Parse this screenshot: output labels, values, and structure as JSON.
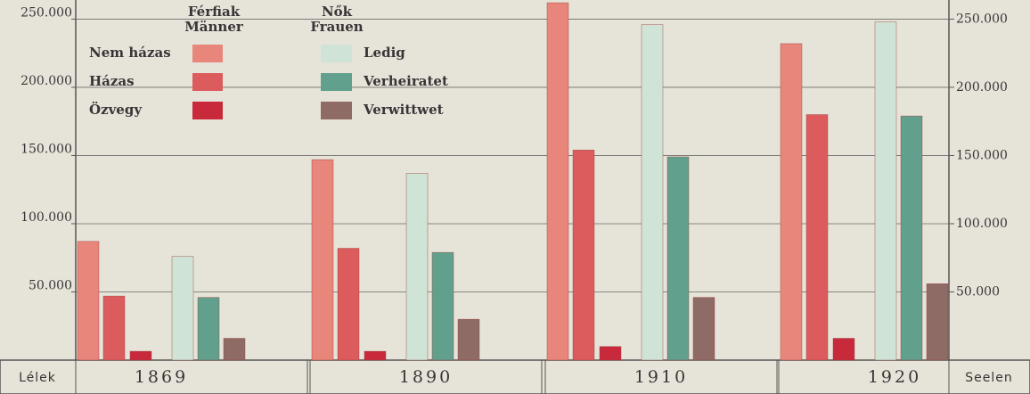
{
  "chart_data": {
    "type": "bar",
    "categories": [
      "1869",
      "1890",
      "1910",
      "1920"
    ],
    "legend_group_titles": [
      [
        "Férfiak",
        "Männer"
      ],
      [
        "Nők",
        "Frauen"
      ]
    ],
    "left_axis_label": "Lélek",
    "right_axis_label": "Seelen",
    "series": [
      {
        "name": "Nem házas",
        "color": "#e8867c",
        "values": [
          87000,
          147000,
          262000,
          232000
        ]
      },
      {
        "name": "Házas",
        "color": "#dc5c5e",
        "values": [
          47000,
          82000,
          154000,
          180000
        ]
      },
      {
        "name": "Özvegy",
        "color": "#c82a3c",
        "values": [
          6500,
          6500,
          10000,
          16000
        ]
      },
      {
        "name": "Ledig",
        "color": "#cfe3d6",
        "values": [
          76000,
          137000,
          246000,
          248000
        ]
      },
      {
        "name": "Verheiratet",
        "color": "#62a08e",
        "values": [
          46000,
          79000,
          149000,
          179000
        ]
      },
      {
        "name": "Verwittwet",
        "color": "#8e6b64",
        "values": [
          16000,
          30000,
          46000,
          56000
        ]
      }
    ],
    "ylim": [
      0,
      264000
    ],
    "yticks": [
      {
        "value": 50000,
        "label": "50.000"
      },
      {
        "value": 100000,
        "label": "100.000"
      },
      {
        "value": 150000,
        "label": "150.000"
      },
      {
        "value": 200000,
        "label": "200.000"
      },
      {
        "value": 250000,
        "label": "250.000"
      }
    ],
    "y2lim": [
      0,
      264000
    ],
    "y2ticks": [
      {
        "value": 50000,
        "label": "50.000"
      },
      {
        "value": 100000,
        "label": "100.000"
      },
      {
        "value": 150000,
        "label": "150.000"
      },
      {
        "value": 200000,
        "label": "200.000"
      },
      {
        "value": 250000,
        "label": "250.000"
      }
    ],
    "grid": true
  }
}
